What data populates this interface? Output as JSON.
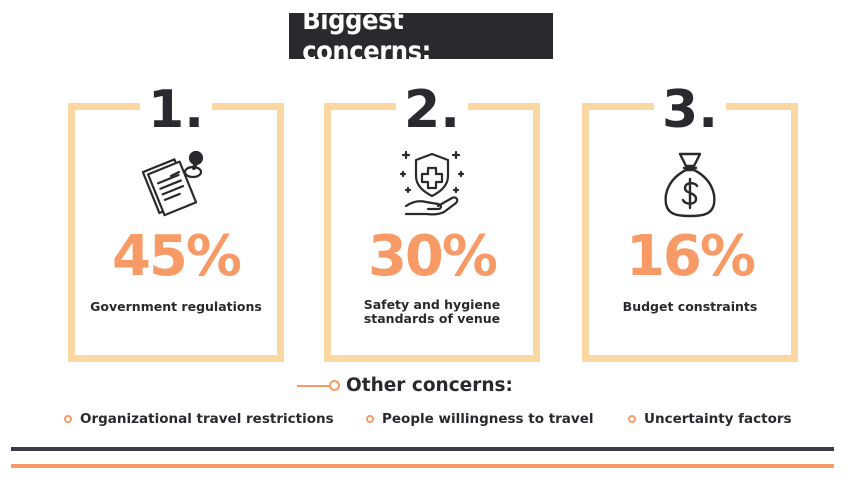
{
  "title": "Biggest concerns:",
  "colors": {
    "accent": "#f79a66",
    "card_border": "#fbd8a2",
    "dark": "#2a2a2e"
  },
  "cards": [
    {
      "rank": "1.",
      "percent": "45%",
      "label": "Government regulations",
      "icon": "clipboard-stamp-icon"
    },
    {
      "rank": "2.",
      "percent": "30%",
      "label": "Safety and hygiene standards of venue",
      "icon": "health-shield-hand-icon"
    },
    {
      "rank": "3.",
      "percent": "16%",
      "label": "Budget constraints",
      "icon": "money-bag-icon"
    }
  ],
  "other": {
    "title": "Other concerns:",
    "items": [
      "Organizational travel restrictions",
      "People willingness to travel",
      "Uncertainty factors"
    ]
  }
}
